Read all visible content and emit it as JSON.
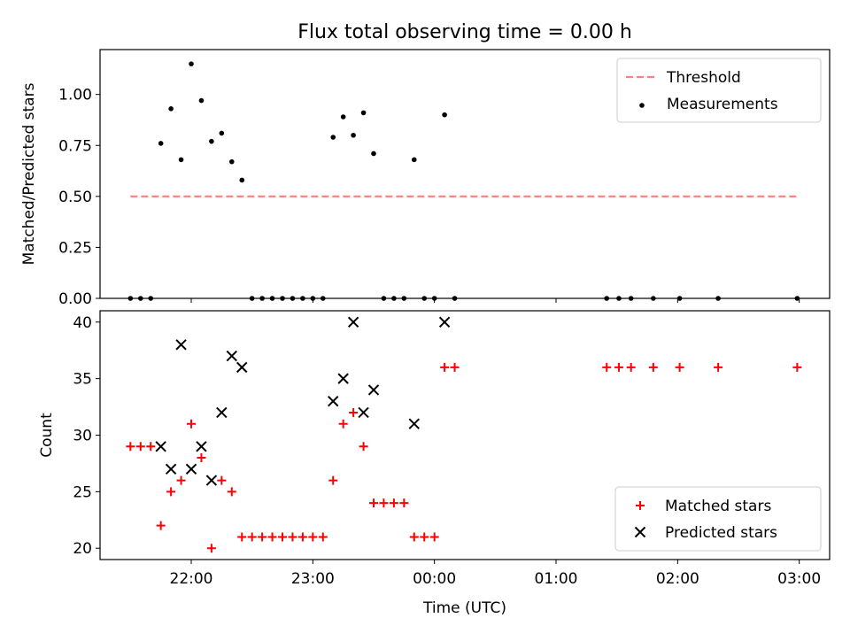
{
  "figure_title": "Flux total observing time = 0.00 h",
  "chart_data": [
    {
      "type": "scatter",
      "title": "Flux total observing time = 0.00 h",
      "xlabel": "",
      "ylabel": "Matched/Predicted stars",
      "ylim": [
        0,
        1.22
      ],
      "yticks": [
        0.0,
        0.25,
        0.5,
        0.75,
        1.0
      ],
      "ytick_labels": [
        "0.00",
        "0.25",
        "0.50",
        "0.75",
        "1.00"
      ],
      "grid": false,
      "legend_position": "top-right",
      "series": [
        {
          "name": "Threshold",
          "kind": "line",
          "style": "dashed",
          "color": "#ff7f7f",
          "points": [
            [
              "21:30",
              0.5
            ],
            [
              "02:59",
              0.5
            ]
          ]
        },
        {
          "name": "Measurements",
          "kind": "scatter",
          "marker": "dot",
          "color": "#000000",
          "points": [
            [
              "21:30",
              0.0
            ],
            [
              "21:35",
              0.0
            ],
            [
              "21:40",
              0.0
            ],
            [
              "21:45",
              0.76
            ],
            [
              "21:50",
              0.93
            ],
            [
              "21:55",
              0.68
            ],
            [
              "22:00",
              1.15
            ],
            [
              "22:05",
              0.97
            ],
            [
              "22:10",
              0.77
            ],
            [
              "22:15",
              0.81
            ],
            [
              "22:20",
              0.67
            ],
            [
              "22:25",
              0.58
            ],
            [
              "22:30",
              0.0
            ],
            [
              "22:35",
              0.0
            ],
            [
              "22:40",
              0.0
            ],
            [
              "22:45",
              0.0
            ],
            [
              "22:50",
              0.0
            ],
            [
              "22:55",
              0.0
            ],
            [
              "23:00",
              0.0
            ],
            [
              "23:05",
              0.0
            ],
            [
              "23:10",
              0.79
            ],
            [
              "23:15",
              0.89
            ],
            [
              "23:20",
              0.8
            ],
            [
              "23:25",
              0.91
            ],
            [
              "23:30",
              0.71
            ],
            [
              "23:35",
              0.0
            ],
            [
              "23:40",
              0.0
            ],
            [
              "23:45",
              0.0
            ],
            [
              "23:50",
              0.68
            ],
            [
              "23:55",
              0.0
            ],
            [
              "00:00",
              0.0
            ],
            [
              "00:05",
              0.9
            ],
            [
              "00:10",
              0.0
            ],
            [
              "01:25",
              0.0
            ],
            [
              "01:31",
              0.0
            ],
            [
              "01:37",
              0.0
            ],
            [
              "01:48",
              0.0
            ],
            [
              "02:01",
              0.0
            ],
            [
              "02:20",
              0.0
            ],
            [
              "02:59",
              0.0
            ]
          ]
        }
      ]
    },
    {
      "type": "scatter",
      "title": "",
      "xlabel": "Time (UTC)",
      "ylabel": "Count",
      "ylim": [
        19,
        41
      ],
      "yticks": [
        20,
        25,
        30,
        35,
        40
      ],
      "ytick_labels": [
        "20",
        "25",
        "30",
        "35",
        "40"
      ],
      "xticks": [
        "22:00",
        "23:00",
        "00:00",
        "01:00",
        "02:00",
        "03:00"
      ],
      "x_start": "21:15",
      "x_end": "03:15",
      "grid": false,
      "legend_position": "bottom-right",
      "series": [
        {
          "name": "Matched stars",
          "kind": "scatter",
          "marker": "plus",
          "color": "#ff0000",
          "points": [
            [
              "21:30",
              29
            ],
            [
              "21:35",
              29
            ],
            [
              "21:40",
              29
            ],
            [
              "21:45",
              22
            ],
            [
              "21:50",
              25
            ],
            [
              "21:55",
              26
            ],
            [
              "22:00",
              31
            ],
            [
              "22:05",
              28
            ],
            [
              "22:10",
              20
            ],
            [
              "22:15",
              26
            ],
            [
              "22:20",
              25
            ],
            [
              "22:25",
              21
            ],
            [
              "22:30",
              21
            ],
            [
              "22:35",
              21
            ],
            [
              "22:40",
              21
            ],
            [
              "22:45",
              21
            ],
            [
              "22:50",
              21
            ],
            [
              "22:55",
              21
            ],
            [
              "23:00",
              21
            ],
            [
              "23:05",
              21
            ],
            [
              "23:10",
              26
            ],
            [
              "23:15",
              31
            ],
            [
              "23:20",
              32
            ],
            [
              "23:25",
              29
            ],
            [
              "23:30",
              24
            ],
            [
              "23:35",
              24
            ],
            [
              "23:40",
              24
            ],
            [
              "23:45",
              24
            ],
            [
              "23:50",
              21
            ],
            [
              "23:55",
              21
            ],
            [
              "00:00",
              21
            ],
            [
              "00:05",
              36
            ],
            [
              "00:10",
              36
            ],
            [
              "01:25",
              36
            ],
            [
              "01:31",
              36
            ],
            [
              "01:37",
              36
            ],
            [
              "01:48",
              36
            ],
            [
              "02:01",
              36
            ],
            [
              "02:20",
              36
            ],
            [
              "02:59",
              36
            ]
          ]
        },
        {
          "name": "Predicted stars",
          "kind": "scatter",
          "marker": "x",
          "color": "#000000",
          "points": [
            [
              "21:45",
              29
            ],
            [
              "21:50",
              27
            ],
            [
              "21:55",
              38
            ],
            [
              "22:00",
              27
            ],
            [
              "22:05",
              29
            ],
            [
              "22:10",
              26
            ],
            [
              "22:15",
              32
            ],
            [
              "22:20",
              37
            ],
            [
              "22:25",
              36
            ],
            [
              "23:10",
              33
            ],
            [
              "23:15",
              35
            ],
            [
              "23:20",
              40
            ],
            [
              "23:25",
              32
            ],
            [
              "23:30",
              34
            ],
            [
              "23:50",
              31
            ],
            [
              "00:05",
              40
            ]
          ]
        }
      ]
    }
  ]
}
